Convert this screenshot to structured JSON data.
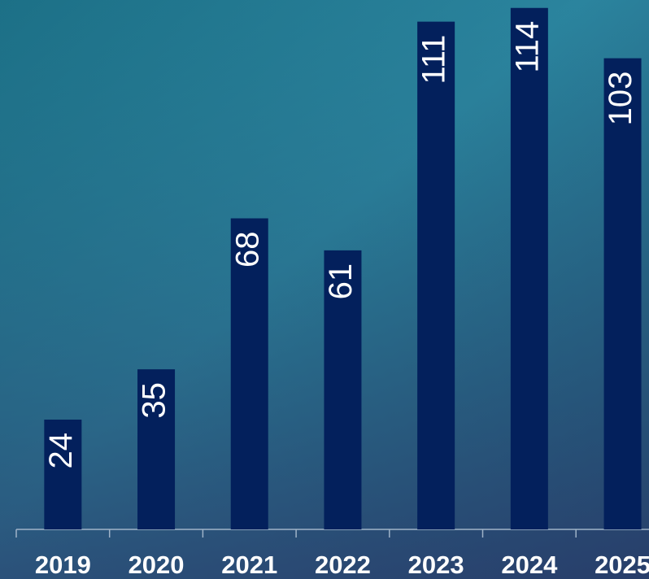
{
  "chart_data": {
    "type": "bar",
    "categories": [
      "2019",
      "2020",
      "2021",
      "2022",
      "2023",
      "2024",
      "2025"
    ],
    "values": [
      24,
      35,
      68,
      61,
      111,
      114,
      103
    ],
    "color": "#03205c"
  }
}
